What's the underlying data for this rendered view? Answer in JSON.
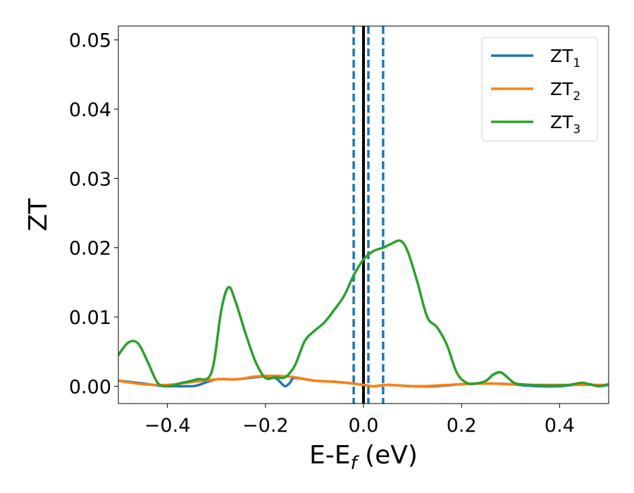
{
  "chart_data": {
    "type": "line",
    "xlabel": "E-E",
    "xlabel_sub": "f",
    "xlabel_unit": " (eV)",
    "ylabel": "ZT",
    "xlim": [
      -0.5,
      0.5
    ],
    "ylim": [
      -0.0025,
      0.052
    ],
    "xticks": [
      -0.4,
      -0.2,
      0.0,
      0.2,
      0.4
    ],
    "xtick_labels": [
      "−0.4",
      "−0.2",
      "0.0",
      "0.2",
      "0.4"
    ],
    "yticks": [
      0.0,
      0.01,
      0.02,
      0.03,
      0.04,
      0.05
    ],
    "ytick_labels": [
      "0.00",
      "0.01",
      "0.02",
      "0.03",
      "0.04",
      "0.05"
    ],
    "grid": false,
    "legend_position": "top-right",
    "vlines": [
      {
        "x": 0.0,
        "style": "solid",
        "color": "#000000"
      },
      {
        "x": -0.02,
        "style": "dashed",
        "color": "#1f77b4"
      },
      {
        "x": 0.01,
        "style": "dashed",
        "color": "#1f77b4"
      },
      {
        "x": 0.04,
        "style": "dashed",
        "color": "#1f77b4"
      }
    ],
    "series": [
      {
        "name": "ZT",
        "subscript": "1",
        "color": "#1f77b4",
        "x": [
          -0.5,
          -0.45,
          -0.42,
          -0.4,
          -0.38,
          -0.36,
          -0.34,
          -0.3,
          -0.26,
          -0.22,
          -0.2,
          -0.18,
          -0.17,
          -0.16,
          -0.15,
          -0.14,
          -0.1,
          -0.05,
          0.0,
          0.02,
          0.05,
          0.1,
          0.15,
          0.2,
          0.25,
          0.3,
          0.33,
          0.36,
          0.4,
          0.43,
          0.46,
          0.48,
          0.5
        ],
        "y": [
          0.0008,
          0.0004,
          0.0001,
          0.0,
          0.0,
          0.0,
          0.0001,
          0.001,
          0.001,
          0.0013,
          0.0014,
          0.0012,
          0.0006,
          0.0,
          0.0005,
          0.0012,
          0.0008,
          0.0006,
          0.0002,
          0.0,
          0.0002,
          0.0,
          0.0,
          0.0003,
          0.0004,
          0.0003,
          0.0001,
          0.0,
          0.0,
          0.0002,
          0.0003,
          0.0,
          0.0002
        ]
      },
      {
        "name": "ZT",
        "subscript": "2",
        "color": "#ff7f0e",
        "x": [
          -0.5,
          -0.45,
          -0.4,
          -0.35,
          -0.3,
          -0.26,
          -0.22,
          -0.18,
          -0.14,
          -0.1,
          -0.05,
          0.0,
          0.02,
          0.05,
          0.1,
          0.15,
          0.2,
          0.25,
          0.3,
          0.35,
          0.4,
          0.45,
          0.5
        ],
        "y": [
          0.0008,
          0.0003,
          0.0002,
          0.0006,
          0.001,
          0.001,
          0.0014,
          0.0015,
          0.0013,
          0.0008,
          0.0006,
          0.0002,
          0.0,
          0.0002,
          0.0,
          0.0001,
          0.0003,
          0.0004,
          0.0003,
          0.0002,
          0.0002,
          0.0002,
          0.0002
        ]
      },
      {
        "name": "ZT",
        "subscript": "3",
        "color": "#2ca02c",
        "x": [
          -0.5,
          -0.48,
          -0.46,
          -0.44,
          -0.42,
          -0.4,
          -0.37,
          -0.34,
          -0.31,
          -0.29,
          -0.275,
          -0.26,
          -0.24,
          -0.22,
          -0.2,
          -0.18,
          -0.16,
          -0.14,
          -0.12,
          -0.1,
          -0.08,
          -0.06,
          -0.04,
          -0.02,
          0.0,
          0.02,
          0.04,
          0.055,
          0.075,
          0.09,
          0.11,
          0.13,
          0.15,
          0.17,
          0.19,
          0.21,
          0.23,
          0.25,
          0.265,
          0.28,
          0.295,
          0.31,
          0.34,
          0.37,
          0.4,
          0.42,
          0.445,
          0.46,
          0.48,
          0.5
        ],
        "y": [
          0.0045,
          0.0063,
          0.0062,
          0.0035,
          0.0005,
          0.0,
          0.0005,
          0.001,
          0.002,
          0.011,
          0.0143,
          0.012,
          0.0075,
          0.0035,
          0.0012,
          0.0013,
          0.0013,
          0.003,
          0.0065,
          0.008,
          0.0092,
          0.011,
          0.013,
          0.016,
          0.0183,
          0.0195,
          0.02,
          0.0205,
          0.021,
          0.0195,
          0.015,
          0.01,
          0.0085,
          0.006,
          0.002,
          0.0005,
          0.0004,
          0.0008,
          0.0017,
          0.002,
          0.0012,
          0.0004,
          0.0002,
          0.0001,
          0.0001,
          0.0002,
          0.0005,
          0.0003,
          0.0,
          0.0003
        ]
      }
    ]
  }
}
